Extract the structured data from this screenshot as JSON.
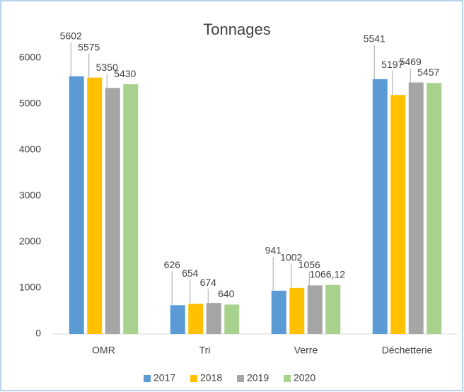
{
  "chart_data": {
    "type": "bar",
    "title": "Tonnages",
    "categories": [
      "OMR",
      "Tri",
      "Verre",
      "Déchetterie"
    ],
    "series": [
      {
        "name": "2017",
        "color": "#5b9bd5",
        "values": [
          5602,
          626,
          941,
          5541
        ]
      },
      {
        "name": "2018",
        "color": "#ffc000",
        "values": [
          5575,
          654,
          1002,
          5197
        ]
      },
      {
        "name": "2019",
        "color": "#a5a5a5",
        "values": [
          5350,
          674,
          1056,
          5469
        ]
      },
      {
        "name": "2020",
        "color": "#a9d18e",
        "values": [
          5430,
          640,
          1066.12,
          5457
        ],
        "value_labels": [
          "5430",
          "640",
          "1066,12",
          "5457"
        ]
      }
    ],
    "ylim": [
      0,
      6000
    ],
    "yticks": [
      0,
      1000,
      2000,
      3000,
      4000,
      5000,
      6000
    ],
    "grid": false,
    "legend": "bottom"
  }
}
